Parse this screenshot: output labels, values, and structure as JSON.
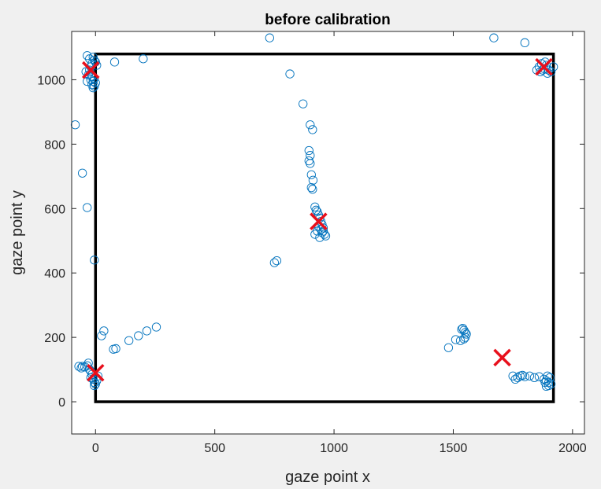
{
  "chart_data": {
    "type": "scatter",
    "title": "before calibration",
    "xlabel": "gaze point x",
    "ylabel": "gaze point y",
    "xlim": [
      -100,
      2050
    ],
    "ylim": [
      -100,
      1150
    ],
    "xticks": [
      0,
      500,
      1000,
      1500,
      2000
    ],
    "yticks": [
      0,
      200,
      400,
      600,
      800,
      1000
    ],
    "grid": false,
    "colors": {
      "gaze": "#0072BD",
      "targets": "#E8101C",
      "screen": "#000000"
    },
    "screen_rect": {
      "x": [
        0,
        1920
      ],
      "y": [
        0,
        1080
      ]
    },
    "series": [
      {
        "marker": "circle",
        "points": [
          [
            -85,
            860
          ],
          [
            -55,
            710
          ],
          [
            -35,
            1075
          ],
          [
            -25,
            1065
          ],
          [
            -20,
            1040
          ],
          [
            -15,
            1050
          ],
          [
            -10,
            1070
          ],
          [
            -5,
            1060
          ],
          [
            0,
            1055
          ],
          [
            5,
            1045
          ],
          [
            -40,
            1025
          ],
          [
            -30,
            1015
          ],
          [
            -35,
            995
          ],
          [
            -20,
            1000
          ],
          [
            -15,
            985
          ],
          [
            -10,
            975
          ],
          [
            -5,
            980
          ],
          [
            0,
            990
          ],
          [
            -25,
            1030
          ],
          [
            -15,
            1010
          ],
          [
            -5,
            1005
          ],
          [
            -10,
            995
          ],
          [
            80,
            1055
          ],
          [
            200,
            1065
          ],
          [
            -35,
            603
          ],
          [
            -5,
            440
          ],
          [
            -70,
            110
          ],
          [
            -60,
            105
          ],
          [
            -55,
            110
          ],
          [
            -45,
            108
          ],
          [
            -35,
            112
          ],
          [
            -30,
            120
          ],
          [
            -25,
            100
          ],
          [
            -20,
            95
          ],
          [
            -15,
            85
          ],
          [
            -10,
            70
          ],
          [
            -5,
            60
          ],
          [
            0,
            55
          ],
          [
            -5,
            50
          ],
          [
            5,
            65
          ],
          [
            10,
            80
          ],
          [
            -20,
            75
          ],
          [
            25,
            205
          ],
          [
            35,
            220
          ],
          [
            75,
            163
          ],
          [
            85,
            165
          ],
          [
            140,
            190
          ],
          [
            180,
            205
          ],
          [
            215,
            220
          ],
          [
            255,
            232
          ],
          [
            730,
            1130
          ],
          [
            815,
            1018
          ],
          [
            870,
            925
          ],
          [
            900,
            860
          ],
          [
            910,
            845
          ],
          [
            895,
            780
          ],
          [
            900,
            765
          ],
          [
            895,
            748
          ],
          [
            900,
            740
          ],
          [
            905,
            705
          ],
          [
            912,
            688
          ],
          [
            905,
            665
          ],
          [
            910,
            660
          ],
          [
            920,
            605
          ],
          [
            925,
            595
          ],
          [
            930,
            590
          ],
          [
            935,
            580
          ],
          [
            940,
            570
          ],
          [
            945,
            560
          ],
          [
            950,
            550
          ],
          [
            955,
            540
          ],
          [
            935,
            545
          ],
          [
            945,
            535
          ],
          [
            950,
            525
          ],
          [
            960,
            520
          ],
          [
            965,
            515
          ],
          [
            920,
            520
          ],
          [
            930,
            530
          ],
          [
            940,
            510
          ],
          [
            955,
            530
          ],
          [
            750,
            432
          ],
          [
            760,
            438
          ],
          [
            1480,
            168
          ],
          [
            1510,
            193
          ],
          [
            1530,
            190
          ],
          [
            1535,
            225
          ],
          [
            1540,
            228
          ],
          [
            1545,
            222
          ],
          [
            1550,
            215
          ],
          [
            1555,
            210
          ],
          [
            1550,
            200
          ],
          [
            1545,
            195
          ],
          [
            1750,
            80
          ],
          [
            1760,
            70
          ],
          [
            1770,
            75
          ],
          [
            1780,
            80
          ],
          [
            1790,
            82
          ],
          [
            1800,
            78
          ],
          [
            1820,
            80
          ],
          [
            1840,
            75
          ],
          [
            1860,
            78
          ],
          [
            1880,
            70
          ],
          [
            1890,
            65
          ],
          [
            1900,
            60
          ],
          [
            1910,
            55
          ],
          [
            1900,
            50
          ],
          [
            1890,
            48
          ],
          [
            1905,
            75
          ],
          [
            1895,
            80
          ],
          [
            1885,
            60
          ],
          [
            1670,
            1130
          ],
          [
            1800,
            1115
          ],
          [
            1850,
            1030
          ],
          [
            1860,
            1040
          ],
          [
            1870,
            1050
          ],
          [
            1880,
            1035
          ],
          [
            1890,
            1045
          ],
          [
            1900,
            1030
          ],
          [
            1910,
            1025
          ],
          [
            1920,
            1040
          ],
          [
            1875,
            1030
          ],
          [
            1885,
            1055
          ],
          [
            1865,
            1025
          ],
          [
            1895,
            1020
          ]
        ]
      },
      {
        "marker": "x",
        "points": [
          [
            -20,
            1030
          ],
          [
            0,
            90
          ],
          [
            935,
            560
          ],
          [
            1880,
            1040
          ],
          [
            1705,
            137
          ]
        ]
      }
    ]
  }
}
